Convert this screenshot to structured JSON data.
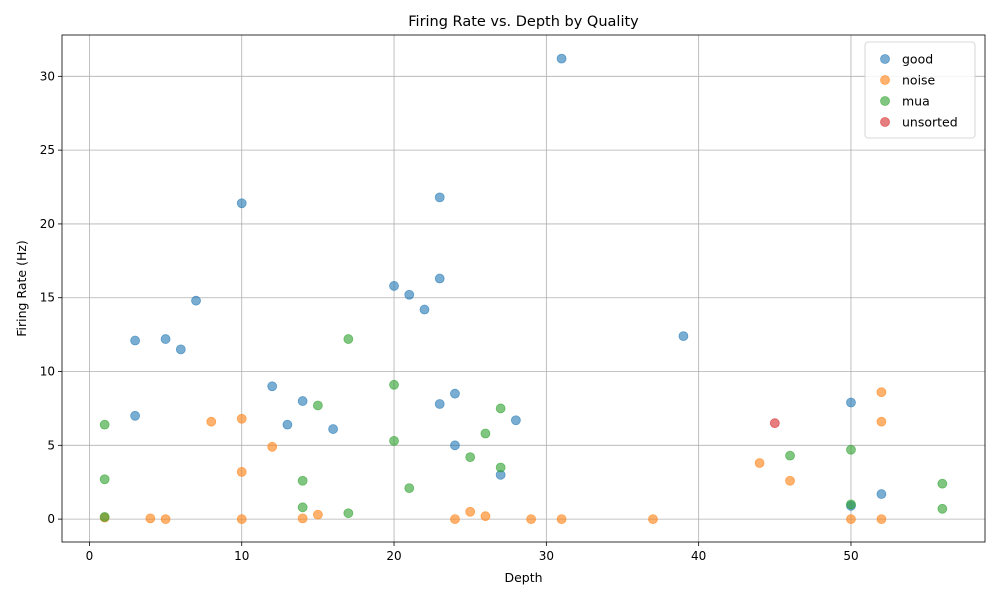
{
  "chart_data": {
    "type": "scatter",
    "title": "Firing Rate vs. Depth by Quality",
    "xlabel": "Depth",
    "ylabel": "Firing Rate (Hz)",
    "xlim": [
      -1.8,
      58.8
    ],
    "ylim": [
      -1.55,
      32.8
    ],
    "xticks": [
      0,
      10,
      20,
      30,
      40,
      50
    ],
    "yticks": [
      0,
      5,
      10,
      15,
      20,
      25,
      30
    ],
    "grid": true,
    "legend_position": "top-right",
    "series": [
      {
        "name": "good",
        "color": "#1f77b4",
        "points": [
          [
            31,
            31.2
          ],
          [
            10,
            21.4
          ],
          [
            23,
            21.8
          ],
          [
            23,
            16.3
          ],
          [
            20,
            15.8
          ],
          [
            21,
            15.2
          ],
          [
            7,
            14.8
          ],
          [
            22,
            14.2
          ],
          [
            39,
            12.4
          ],
          [
            3,
            12.1
          ],
          [
            5,
            12.2
          ],
          [
            6,
            11.5
          ],
          [
            12,
            9.0
          ],
          [
            24,
            8.5
          ],
          [
            14,
            8.0
          ],
          [
            23,
            7.8
          ],
          [
            50,
            7.9
          ],
          [
            3,
            7.0
          ],
          [
            28,
            6.7
          ],
          [
            13,
            6.4
          ],
          [
            16,
            6.1
          ],
          [
            24,
            5.0
          ],
          [
            27,
            3.0
          ],
          [
            52,
            1.7
          ],
          [
            50,
            0.9
          ]
        ]
      },
      {
        "name": "noise",
        "color": "#ff7f0e",
        "points": [
          [
            52,
            8.6
          ],
          [
            10,
            6.8
          ],
          [
            8,
            6.6
          ],
          [
            52,
            6.6
          ],
          [
            12,
            4.9
          ],
          [
            44,
            3.8
          ],
          [
            10,
            3.2
          ],
          [
            46,
            2.6
          ],
          [
            25,
            0.5
          ],
          [
            15,
            0.3
          ],
          [
            26,
            0.2
          ],
          [
            1,
            0.1
          ],
          [
            4,
            0.05
          ],
          [
            14,
            0.05
          ],
          [
            5,
            0.0
          ],
          [
            10,
            0.0
          ],
          [
            24,
            0.0
          ],
          [
            29,
            0.0
          ],
          [
            31,
            0.0
          ],
          [
            37,
            0.0
          ],
          [
            50,
            0.0
          ],
          [
            52,
            0.0
          ]
        ]
      },
      {
        "name": "mua",
        "color": "#2ca02c",
        "points": [
          [
            17,
            12.2
          ],
          [
            20,
            9.1
          ],
          [
            15,
            7.7
          ],
          [
            27,
            7.5
          ],
          [
            1,
            6.4
          ],
          [
            26,
            5.8
          ],
          [
            20,
            5.3
          ],
          [
            50,
            4.7
          ],
          [
            46,
            4.3
          ],
          [
            25,
            4.2
          ],
          [
            27,
            3.5
          ],
          [
            1,
            2.7
          ],
          [
            14,
            2.6
          ],
          [
            56,
            2.4
          ],
          [
            21,
            2.1
          ],
          [
            50,
            1.0
          ],
          [
            14,
            0.8
          ],
          [
            56,
            0.7
          ],
          [
            17,
            0.4
          ],
          [
            1,
            0.15
          ]
        ]
      },
      {
        "name": "unsorted",
        "color": "#d62728",
        "points": [
          [
            45,
            6.5
          ]
        ]
      }
    ]
  }
}
